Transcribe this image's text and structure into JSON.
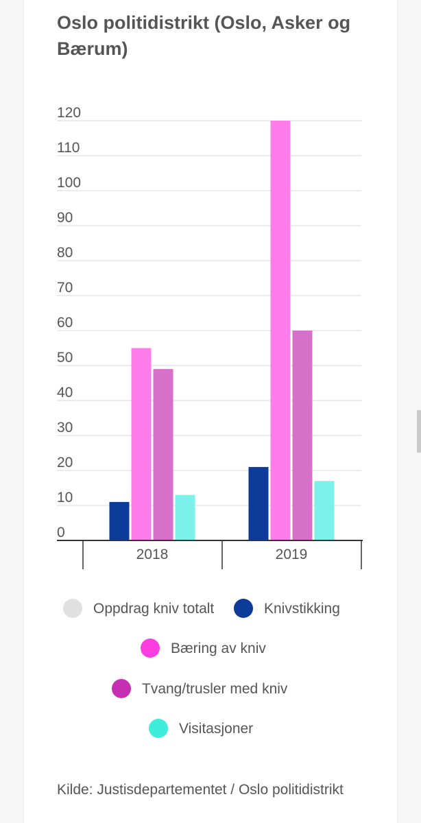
{
  "chart_data": {
    "type": "bar",
    "title": "Oslo politidistrikt (Oslo, Asker og Bærum)",
    "categories": [
      "2018",
      "2019"
    ],
    "ylim": [
      0,
      120
    ],
    "yticks": [
      0,
      10,
      20,
      30,
      40,
      50,
      60,
      70,
      80,
      90,
      100,
      110,
      120
    ],
    "grid": true,
    "legend_position": "bottom",
    "series": [
      {
        "name": "Oppdrag kniv totalt",
        "color": "#e0e0e0",
        "values": [
          null,
          null
        ]
      },
      {
        "name": "Knivstikking",
        "color": "#0d3b99",
        "values": [
          11,
          21
        ]
      },
      {
        "name": "Bæring av kniv",
        "color": "#ff7ceb",
        "values": [
          55,
          120
        ]
      },
      {
        "name": "Tvang/trusler med kniv",
        "color": "#d670c9",
        "values": [
          49,
          60
        ]
      },
      {
        "name": "Visitasjoner",
        "color": "#7cf1ea",
        "values": [
          13,
          17
        ]
      }
    ],
    "legend_dot_colors": [
      "#e0e0e0",
      "#0d3b99",
      "#ff3de0",
      "#c42fb3",
      "#3eeedd"
    ]
  },
  "source": "Kilde: Justisdepartementet / Oslo politidistrikt"
}
